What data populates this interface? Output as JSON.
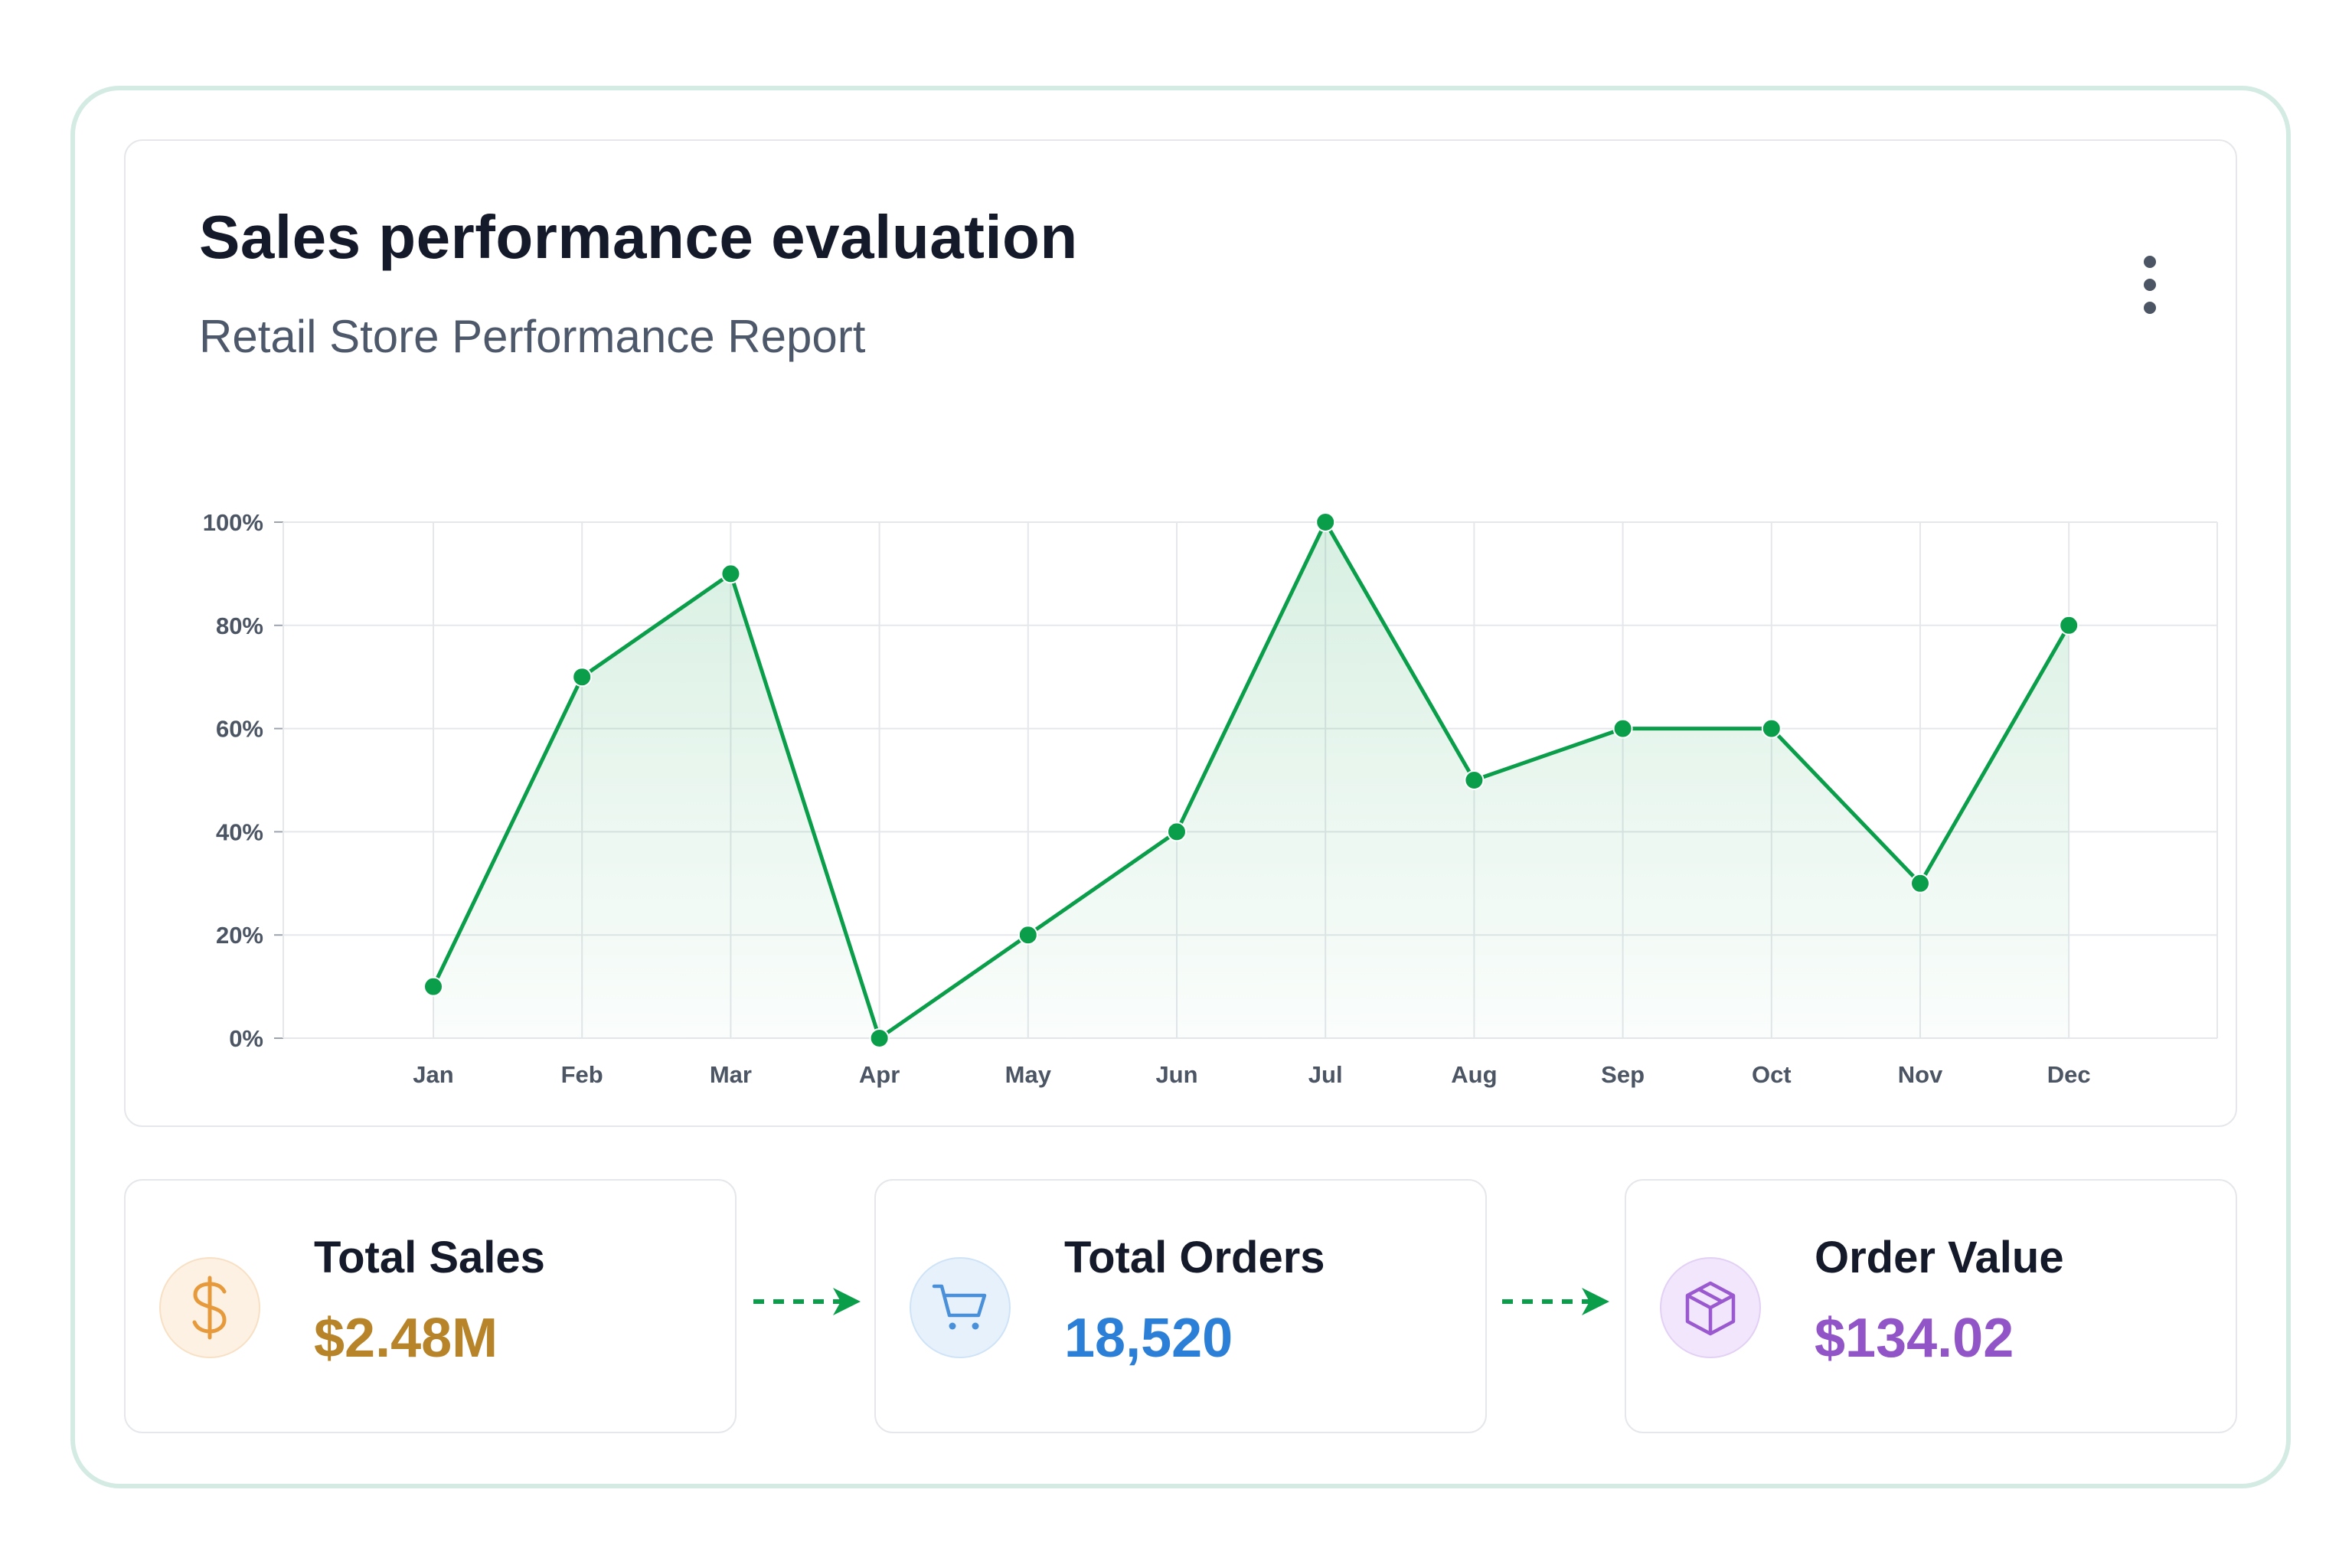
{
  "header": {
    "title": "Sales performance evaluation",
    "subtitle": "Retail Store Performance Report",
    "menu_icon": "more-vertical-icon"
  },
  "chart_data": {
    "type": "area",
    "categories": [
      "Jan",
      "Feb",
      "Mar",
      "Apr",
      "May",
      "Jun",
      "Jul",
      "Aug",
      "Sep",
      "Oct",
      "Nov",
      "Dec"
    ],
    "series": [
      {
        "values": [
          10,
          70,
          90,
          0,
          20,
          40,
          100,
          50,
          60,
          60,
          30,
          80
        ]
      }
    ],
    "yticks": [
      "0%",
      "20%",
      "40%",
      "60%",
      "80%",
      "100%"
    ],
    "ylim": [
      0,
      100
    ],
    "grid": true,
    "line_color": "#0b9e4a",
    "fill_color": "#0b9e4a"
  },
  "metrics": [
    {
      "label": "Total Sales",
      "value": "$2.48M",
      "icon": "dollar-icon",
      "color": "#b8842a",
      "bg": "#fdf1e3"
    },
    {
      "label": "Total Orders",
      "value": "18,520",
      "icon": "shopping-cart-icon",
      "color": "#2b7fd6",
      "bg": "#e7f1fc"
    },
    {
      "label": "Order Value",
      "value": "$134.02",
      "icon": "package-icon",
      "color": "#9155c8",
      "bg": "#f1e6fb"
    }
  ],
  "flow": {
    "arrow_icon": "arrow-right-icon",
    "color": "#0b9e4a"
  }
}
